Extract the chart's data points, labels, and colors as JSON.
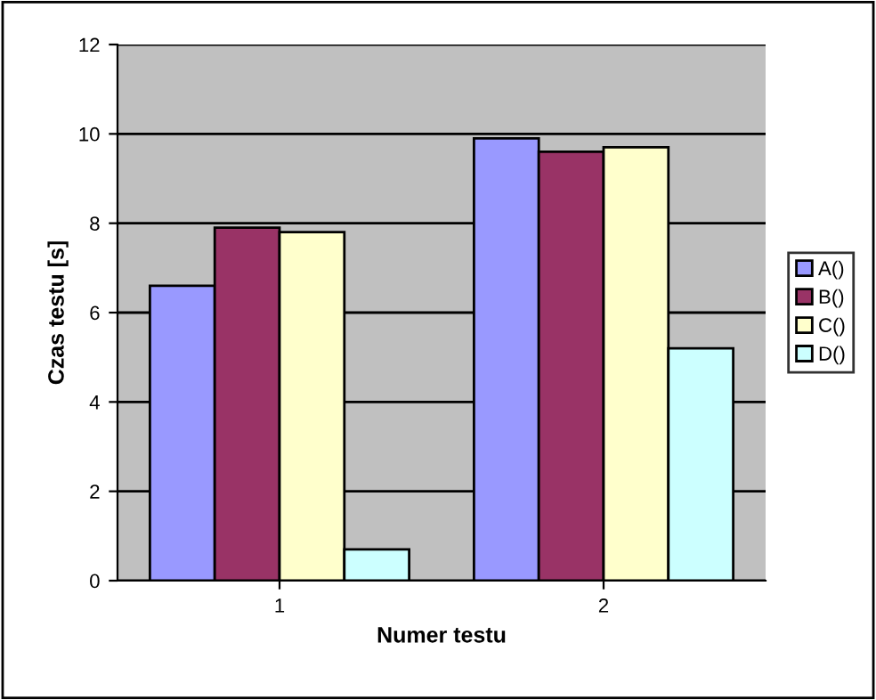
{
  "chart_data": {
    "type": "bar",
    "xlabel": "Numer testu",
    "ylabel": "Czas testu [s]",
    "categories": [
      "1",
      "2"
    ],
    "series": [
      {
        "name": "A()",
        "color": "#9999ff",
        "values": [
          6.6,
          9.9
        ]
      },
      {
        "name": "B()",
        "color": "#993366",
        "values": [
          7.9,
          9.6
        ]
      },
      {
        "name": "C()",
        "color": "#ffffcc",
        "values": [
          7.8,
          9.7
        ]
      },
      {
        "name": "D()",
        "color": "#ccffff",
        "values": [
          0.7,
          5.2
        ]
      }
    ],
    "ylim": [
      0,
      12
    ],
    "yticks": [
      0,
      2,
      4,
      6,
      8,
      10,
      12
    ],
    "grid": "y",
    "legend": "right"
  }
}
